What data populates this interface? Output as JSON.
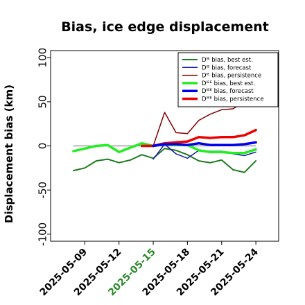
{
  "chart_data": {
    "type": "line",
    "title": "Bias, ice edge displacement",
    "ylabel": "Displacement bias (km)",
    "xlabel": "",
    "ylim": [
      -108,
      108
    ],
    "xlim": [
      "2025-05-06",
      "2025-05-26"
    ],
    "yticks": [
      -100,
      -50,
      0,
      50,
      100
    ],
    "xticks": [
      {
        "label": "2025-05-09",
        "color": "#000000"
      },
      {
        "label": "2025-05-12",
        "color": "#000000"
      },
      {
        "label": "2025-05-15",
        "color": "#2a8a2a"
      },
      {
        "label": "2025-05-18",
        "color": "#000000"
      },
      {
        "label": "2025-05-21",
        "color": "#000000"
      },
      {
        "label": "2025-05-24",
        "color": "#000000"
      }
    ],
    "legend_position": "top-right",
    "zero_line_color": "#888888",
    "series": [
      {
        "name": "Dᴵᴱ bias, best est.",
        "color": "#1e7a1e",
        "width": 2,
        "x": [
          "2025-05-08",
          "2025-05-09",
          "2025-05-10",
          "2025-05-11",
          "2025-05-12",
          "2025-05-13",
          "2025-05-14",
          "2025-05-15",
          "2025-05-16",
          "2025-05-17",
          "2025-05-18",
          "2025-05-19",
          "2025-05-20",
          "2025-05-21",
          "2025-05-22",
          "2025-05-23",
          "2025-05-24"
        ],
        "y": [
          -28,
          -25,
          -17,
          -15,
          -19,
          -16,
          -10,
          -14,
          -3,
          -5,
          -10,
          -17,
          -19,
          -16,
          -27,
          -30,
          -17
        ]
      },
      {
        "name": "Dᴵᴱ bias, forecast",
        "color": "#1a1aaa",
        "width": 1.5,
        "x": [
          "2025-05-15",
          "2025-05-16",
          "2025-05-17",
          "2025-05-18",
          "2025-05-19",
          "2025-05-20",
          "2025-05-21",
          "2025-05-22",
          "2025-05-23",
          "2025-05-24"
        ],
        "y": [
          -15,
          2,
          -9,
          -14,
          -5,
          -6,
          -6,
          -9,
          -11,
          -7
        ]
      },
      {
        "name": "Dᴵᴱ bias, persistence",
        "color": "#800000",
        "width": 1.5,
        "x": [
          "2025-05-14",
          "2025-05-15",
          "2025-05-16",
          "2025-05-17",
          "2025-05-18",
          "2025-05-19",
          "2025-05-20",
          "2025-05-21",
          "2025-05-22",
          "2025-05-23"
        ],
        "y": [
          0,
          0,
          38,
          15,
          14,
          29,
          36,
          41,
          42,
          50
        ]
      },
      {
        "name": "Dᴵᴱᴱ bias, best est.",
        "color": "#22ee22",
        "width": 3.5,
        "x": [
          "2025-05-08",
          "2025-05-09",
          "2025-05-10",
          "2025-05-11",
          "2025-05-12",
          "2025-05-13",
          "2025-05-14",
          "2025-05-15",
          "2025-05-16",
          "2025-05-17",
          "2025-05-18",
          "2025-05-19",
          "2025-05-20",
          "2025-05-21",
          "2025-05-22",
          "2025-05-23",
          "2025-05-24"
        ],
        "y": [
          -6,
          -3,
          0,
          1,
          -7,
          -2,
          3,
          0,
          2,
          1,
          1,
          -5,
          -7,
          -7,
          -8,
          -8,
          -4
        ]
      },
      {
        "name": "Dᴵᴱᴱ bias, forecast",
        "color": "#0000ee",
        "width": 3.5,
        "x": [
          "2025-05-15",
          "2025-05-16",
          "2025-05-17",
          "2025-05-18",
          "2025-05-19",
          "2025-05-20",
          "2025-05-21",
          "2025-05-22",
          "2025-05-23",
          "2025-05-24"
        ],
        "y": [
          0,
          2,
          2,
          1,
          3,
          1,
          1,
          1,
          2,
          4
        ]
      },
      {
        "name": "Dᴵᴱᴱ bias, persistence",
        "color": "#ee0000",
        "width": 3.5,
        "x": [
          "2025-05-14",
          "2025-05-15",
          "2025-05-16",
          "2025-05-17",
          "2025-05-18",
          "2025-05-19",
          "2025-05-20",
          "2025-05-21",
          "2025-05-22",
          "2025-05-23",
          "2025-05-24"
        ],
        "y": [
          0,
          0,
          3,
          4,
          5,
          10,
          9,
          10,
          10,
          12,
          18
        ]
      }
    ]
  }
}
